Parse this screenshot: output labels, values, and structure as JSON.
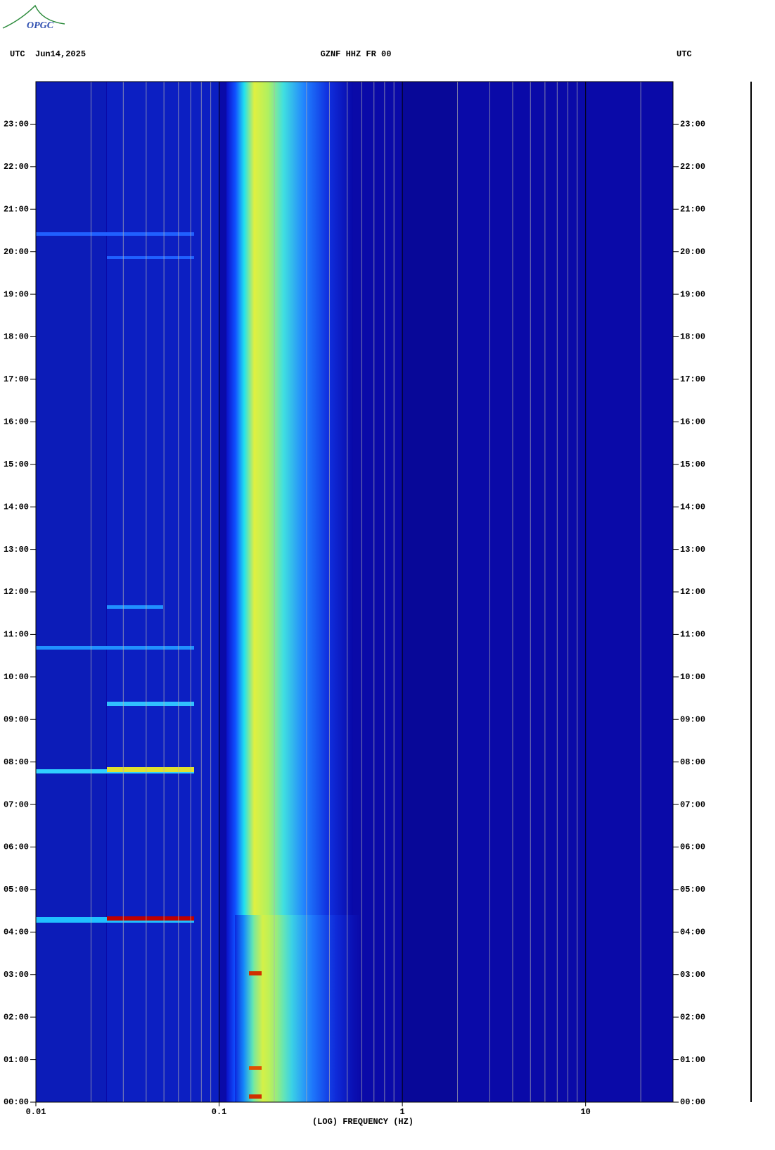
{
  "logo": "OPGC",
  "chart_data": {
    "type": "spectrogram",
    "header_left": "UTC  Jun14,2025",
    "title": "GZNF HHZ FR 00",
    "header_right": "UTC",
    "xlabel": "(LOG) FREQUENCY (HZ)",
    "xlog": true,
    "xlim": [
      0.01,
      30
    ],
    "xticks": [
      0.01,
      0.1,
      1,
      10
    ],
    "xminor": [
      0.02,
      0.03,
      0.04,
      0.05,
      0.06,
      0.07,
      0.08,
      0.09,
      0.2,
      0.3,
      0.4,
      0.5,
      0.6,
      0.7,
      0.8,
      0.9,
      2,
      3,
      4,
      5,
      6,
      7,
      8,
      9,
      20
    ],
    "ylim": [
      0,
      24
    ],
    "yticks": [
      {
        "value": 0,
        "label": "00:00"
      },
      {
        "value": 1,
        "label": "01:00"
      },
      {
        "value": 2,
        "label": "02:00"
      },
      {
        "value": 3,
        "label": "03:00"
      },
      {
        "value": 4,
        "label": "04:00"
      },
      {
        "value": 5,
        "label": "05:00"
      },
      {
        "value": 6,
        "label": "06:00"
      },
      {
        "value": 7,
        "label": "07:00"
      },
      {
        "value": 8,
        "label": "08:00"
      },
      {
        "value": 9,
        "label": "09:00"
      },
      {
        "value": 10,
        "label": "10:00"
      },
      {
        "value": 11,
        "label": "11:00"
      },
      {
        "value": 12,
        "label": "12:00"
      },
      {
        "value": 13,
        "label": "13:00"
      },
      {
        "value": 14,
        "label": "14:00"
      },
      {
        "value": 15,
        "label": "15:00"
      },
      {
        "value": 16,
        "label": "16:00"
      },
      {
        "value": 17,
        "label": "17:00"
      },
      {
        "value": 18,
        "label": "18:00"
      },
      {
        "value": 19,
        "label": "19:00"
      },
      {
        "value": 20,
        "label": "20:00"
      },
      {
        "value": 21,
        "label": "21:00"
      },
      {
        "value": 22,
        "label": "22:00"
      },
      {
        "value": 23,
        "label": "23:00"
      }
    ]
  }
}
